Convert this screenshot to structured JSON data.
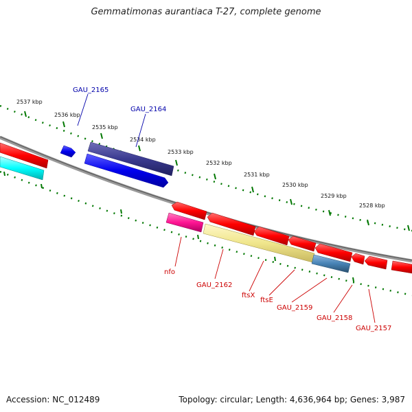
{
  "header": {
    "title": "Gemmatimonas aurantiaca T-27, complete genome"
  },
  "footer": {
    "accession": "Accession: NC_012489",
    "topology": "Topology: circular; Length: 4,636,964 bp; Genes: 3,987"
  },
  "ticks": [
    "2537 kbp",
    "2536 kbp",
    "2535 kbp",
    "2534 kbp",
    "2533 kbp",
    "2532 kbp",
    "2531 kbp",
    "2530 kbp",
    "2529 kbp",
    "2528 kbp"
  ],
  "genes_top": [
    "GAU_2165",
    "GAU_2164"
  ],
  "genes_bottom": [
    "nfo",
    "GAU_2162",
    "ftsX",
    "ftsE",
    "GAU_2159",
    "GAU_2158",
    "GAU_2157"
  ],
  "colors": {
    "forward_red": "#ff0000",
    "blue": "#0000ee",
    "dark_blue": "#3a3a90",
    "cyan": "#00ffff",
    "magenta": "#ff1493",
    "khaki": "#f0e68c",
    "steel_blue": "#4682b4",
    "backbone": "#808080",
    "tick_green": "#007700"
  }
}
